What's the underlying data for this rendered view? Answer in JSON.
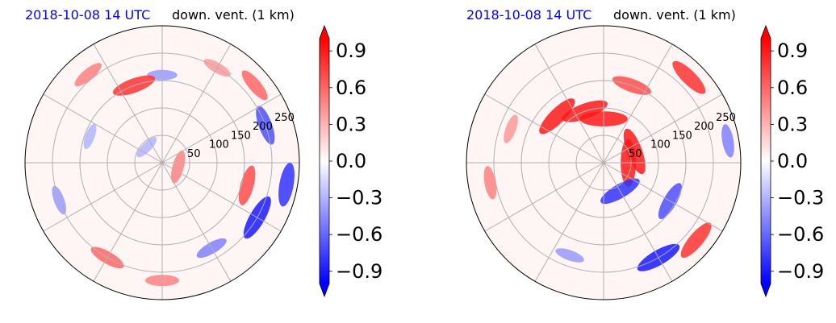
{
  "chart_data": [
    {
      "type": "heatmap",
      "title_time": "2018-10-08 14 UTC",
      "title_var": "down. vent. (1 km)",
      "radial_tick_labels": [
        "50",
        "100",
        "150",
        "200",
        "250"
      ],
      "radial_ticks": [
        50,
        100,
        150,
        200,
        250
      ],
      "r_max": 250,
      "colorbar": {
        "tick_labels": [
          "0.9",
          "0.6",
          "0.3",
          "0.0",
          "−0.3",
          "−0.6",
          "−0.9"
        ],
        "ticks": [
          0.9,
          0.6,
          0.3,
          0.0,
          -0.3,
          -0.6,
          -0.9
        ],
        "range": [
          -1.0,
          1.0
        ],
        "colormap": "bwr",
        "extend": "both"
      },
      "cells": [
        {
          "r": 200,
          "theta_deg": 330,
          "value": -0.9
        },
        {
          "r": 230,
          "theta_deg": 350,
          "value": -0.8
        },
        {
          "r": 160,
          "theta_deg": 345,
          "value": 0.7
        },
        {
          "r": 200,
          "theta_deg": 20,
          "value": -0.7
        },
        {
          "r": 220,
          "theta_deg": 40,
          "value": 0.6
        },
        {
          "r": 200,
          "theta_deg": 60,
          "value": 0.4
        },
        {
          "r": 160,
          "theta_deg": 90,
          "value": -0.4
        },
        {
          "r": 150,
          "theta_deg": 110,
          "value": 0.8
        },
        {
          "r": 210,
          "theta_deg": 130,
          "value": 0.5
        },
        {
          "r": 140,
          "theta_deg": 160,
          "value": -0.3
        },
        {
          "r": 200,
          "theta_deg": 200,
          "value": -0.4
        },
        {
          "r": 200,
          "theta_deg": 240,
          "value": 0.6
        },
        {
          "r": 215,
          "theta_deg": 270,
          "value": 0.5
        },
        {
          "r": 180,
          "theta_deg": 300,
          "value": -0.5
        },
        {
          "r": 30,
          "theta_deg": 345,
          "value": 0.5
        },
        {
          "r": 40,
          "theta_deg": 135,
          "value": -0.3
        }
      ]
    },
    {
      "type": "heatmap",
      "title_time": "2018-10-08 14 UTC",
      "title_var": "down. vent. (1 km)",
      "radial_tick_labels": [
        "50",
        "100",
        "150",
        "200",
        "250"
      ],
      "radial_ticks": [
        50,
        100,
        150,
        200,
        250
      ],
      "r_max": 250,
      "colorbar": {
        "tick_labels": [
          "0.9",
          "0.6",
          "0.3",
          "0.0",
          "−0.3",
          "−0.6",
          "−0.9"
        ],
        "ticks": [
          0.9,
          0.6,
          0.3,
          0.0,
          -0.3,
          -0.6,
          -0.9
        ],
        "range": [
          -1.0,
          1.0
        ],
        "colormap": "bwr",
        "extend": "both"
      },
      "cells": [
        {
          "r": 100,
          "theta_deg": 110,
          "value": 0.9
        },
        {
          "r": 120,
          "theta_deg": 135,
          "value": 0.9
        },
        {
          "r": 80,
          "theta_deg": 90,
          "value": 0.9
        },
        {
          "r": 60,
          "theta_deg": 20,
          "value": 0.9
        },
        {
          "r": 45,
          "theta_deg": 0,
          "value": 0.9
        },
        {
          "r": 220,
          "theta_deg": 45,
          "value": 0.8
        },
        {
          "r": 150,
          "theta_deg": 70,
          "value": 0.7
        },
        {
          "r": 60,
          "theta_deg": 300,
          "value": -0.8
        },
        {
          "r": 140,
          "theta_deg": 330,
          "value": -0.7
        },
        {
          "r": 200,
          "theta_deg": 300,
          "value": -0.9
        },
        {
          "r": 220,
          "theta_deg": 320,
          "value": 0.8
        },
        {
          "r": 180,
          "theta_deg": 250,
          "value": -0.4
        },
        {
          "r": 210,
          "theta_deg": 190,
          "value": 0.5
        },
        {
          "r": 180,
          "theta_deg": 160,
          "value": 0.4
        },
        {
          "r": 230,
          "theta_deg": 10,
          "value": -0.5
        }
      ]
    }
  ]
}
